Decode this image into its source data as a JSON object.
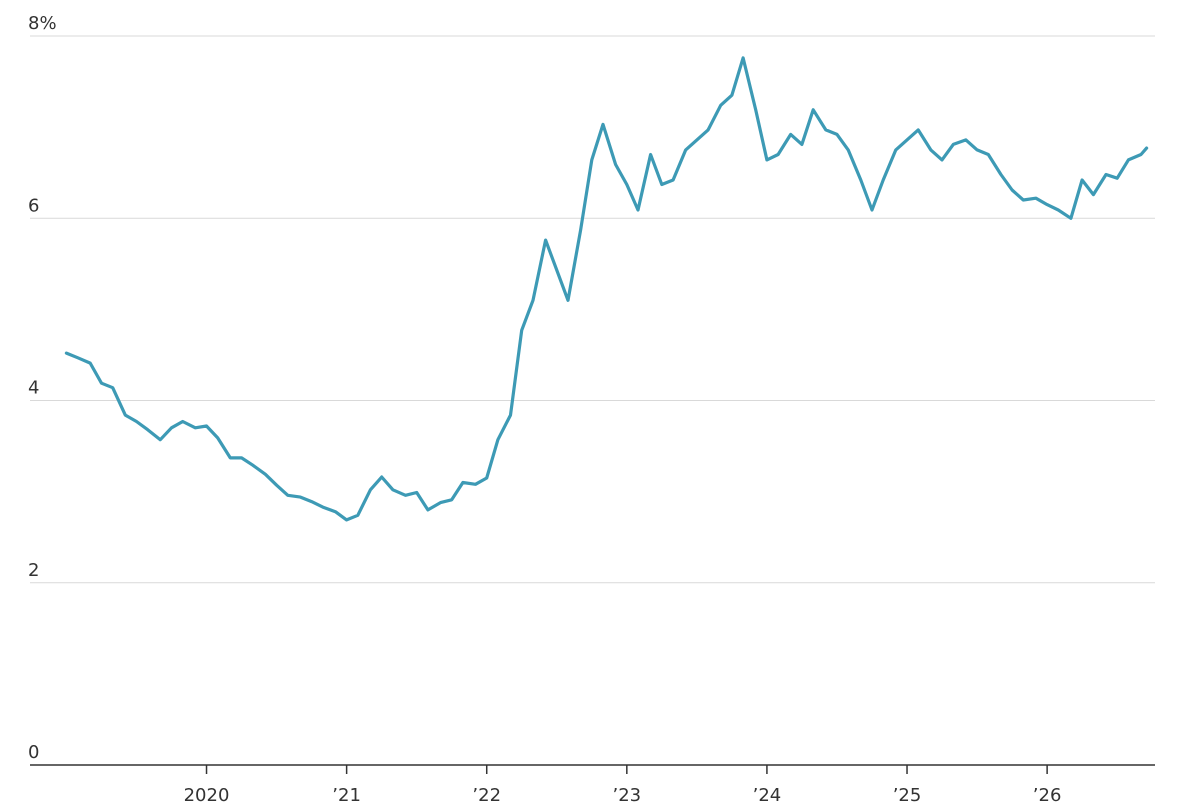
{
  "chart_data": {
    "type": "line",
    "x": [
      2019.0,
      2019.08,
      2019.17,
      2019.25,
      2019.33,
      2019.42,
      2019.5,
      2019.58,
      2019.67,
      2019.75,
      2019.83,
      2019.92,
      2020.0,
      2020.08,
      2020.17,
      2020.25,
      2020.33,
      2020.42,
      2020.5,
      2020.58,
      2020.67,
      2020.75,
      2020.83,
      2020.92,
      2021.0,
      2021.08,
      2021.17,
      2021.25,
      2021.33,
      2021.42,
      2021.5,
      2021.58,
      2021.67,
      2021.75,
      2021.83,
      2021.92,
      2022.0,
      2022.08,
      2022.17,
      2022.25,
      2022.33,
      2022.42,
      2022.5,
      2022.58,
      2022.67,
      2022.75,
      2022.83,
      2022.92,
      2023.0,
      2023.08,
      2023.17,
      2023.25,
      2023.33,
      2023.42,
      2023.5,
      2023.58,
      2023.67,
      2023.75,
      2023.83,
      2023.92,
      2024.0,
      2024.08,
      2024.17,
      2024.25,
      2024.33,
      2024.42,
      2024.5,
      2024.58,
      2024.67,
      2024.75,
      2024.83,
      2024.92,
      2025.0,
      2025.08,
      2025.17,
      2025.25,
      2025.33,
      2025.42,
      2025.5,
      2025.58,
      2025.67,
      2025.75,
      2025.83,
      2025.92,
      2026.0,
      2026.08,
      2026.17,
      2026.25,
      2026.33,
      2026.42,
      2026.5,
      2026.58,
      2026.67,
      2026.71
    ],
    "values": [
      4.52,
      4.47,
      4.41,
      4.19,
      4.14,
      3.84,
      3.77,
      3.68,
      3.57,
      3.7,
      3.77,
      3.7,
      3.72,
      3.59,
      3.37,
      3.37,
      3.29,
      3.19,
      3.07,
      2.96,
      2.94,
      2.89,
      2.83,
      2.78,
      2.69,
      2.74,
      3.02,
      3.16,
      3.02,
      2.96,
      2.99,
      2.8,
      2.88,
      2.91,
      3.1,
      3.08,
      3.15,
      3.57,
      3.84,
      4.77,
      5.1,
      5.76,
      5.43,
      5.1,
      5.87,
      6.64,
      7.03,
      6.59,
      6.37,
      6.09,
      6.7,
      6.37,
      6.42,
      6.75,
      6.86,
      6.97,
      7.24,
      7.35,
      7.76,
      7.19,
      6.64,
      6.7,
      6.92,
      6.81,
      7.19,
      6.97,
      6.92,
      6.75,
      6.42,
      6.09,
      6.42,
      6.75,
      6.86,
      6.97,
      6.75,
      6.64,
      6.81,
      6.86,
      6.75,
      6.7,
      6.48,
      6.31,
      6.2,
      6.22,
      6.15,
      6.09,
      6.0,
      6.42,
      6.26,
      6.48,
      6.44,
      6.64,
      6.7,
      6.77
    ],
    "color": "#3d9ab5",
    "xlim": [
      2018.74,
      2026.77
    ],
    "xticks": [
      2020,
      {
        "value": 2021,
        "label": "’21"
      },
      {
        "value": 2022,
        "label": "’22"
      },
      {
        "value": 2023,
        "label": "’23"
      },
      {
        "value": 2024,
        "label": "’24"
      },
      {
        "value": 2025,
        "label": "’25"
      },
      {
        "value": 2026,
        "label": "’26"
      }
    ],
    "ylim": [
      0,
      8
    ],
    "yticks": [
      0,
      2,
      4,
      6,
      {
        "value": 8,
        "label": "8%"
      }
    ],
    "grid": true
  }
}
